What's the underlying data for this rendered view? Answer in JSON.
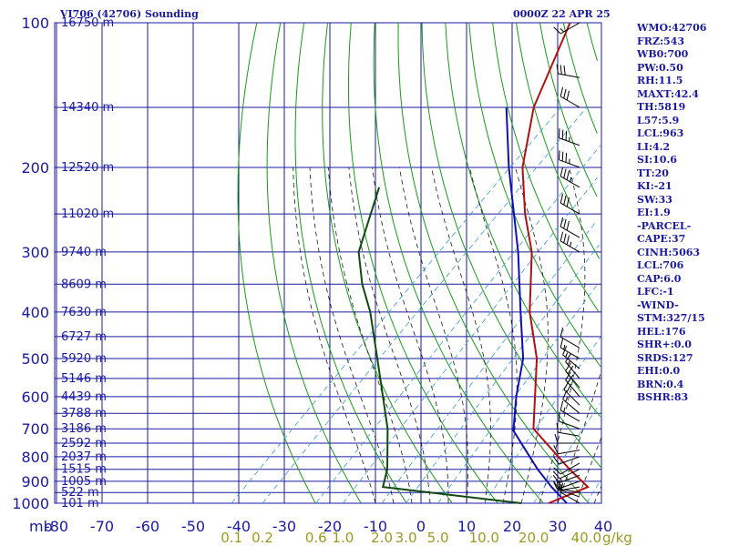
{
  "header": {
    "station": "VI706 (42706) Sounding",
    "time": "0000Z 22 APR 25"
  },
  "indices": [
    "WMO:42706",
    "FRZ:543",
    "WB0:700",
    "PW:0.50",
    "RH:11.5",
    "MAXT:42.4",
    "TH:5819",
    "L57:5.9",
    "LCL:963",
    "LI:4.2",
    "SI:10.6",
    "TT:20",
    "KI:-21",
    "SW:33",
    "EI:1.9",
    "-PARCEL-",
    "CAPE:37",
    "CINH:5063",
    "LCL:706",
    "CAP:6.0",
    "LFC:-1",
    "-WIND-",
    "STM:327/15",
    "HEL:176",
    "SHR+:0.0",
    "SRDS:127",
    "EHI:0.0",
    "BRN:0.4",
    "BSHR:83"
  ],
  "colors": {
    "text": "#1a1aa0",
    "isobar": "#1a1aa0",
    "isotherm": "#1a1aa0",
    "dry_adiabat": "#1a9a1a",
    "moist_adiabat": "#1a1a1a",
    "mixing_ratio": "#3a9ad8",
    "mixing_label": "#9a9a22",
    "temperature": "#b01010",
    "dewpoint": "#104a10",
    "parcel": "#1010b0",
    "wind": "#000000"
  },
  "chart_data": {
    "type": "skew-t",
    "pressure_unit": "mb",
    "pressure_range": [
      100,
      1000
    ],
    "temperature_range": [
      -80,
      40
    ],
    "pressure_levels": [
      {
        "p": 100,
        "label": "100",
        "height": "16750 m"
      },
      {
        "p": 150,
        "label": "",
        "height": "14340 m"
      },
      {
        "p": 200,
        "label": "200",
        "height": "12520 m"
      },
      {
        "p": 250,
        "label": "",
        "height": "11020 m"
      },
      {
        "p": 300,
        "label": "300",
        "height": "9740 m"
      },
      {
        "p": 350,
        "label": "",
        "height": "8609 m"
      },
      {
        "p": 400,
        "label": "400",
        "height": "7630 m"
      },
      {
        "p": 450,
        "label": "",
        "height": "6727 m"
      },
      {
        "p": 500,
        "label": "500",
        "height": "5920 m"
      },
      {
        "p": 550,
        "label": "",
        "height": "5146 m"
      },
      {
        "p": 600,
        "label": "600",
        "height": "4439 m"
      },
      {
        "p": 650,
        "label": "",
        "height": "3788 m"
      },
      {
        "p": 700,
        "label": "700",
        "height": "3186 m"
      },
      {
        "p": 750,
        "label": "",
        "height": "2592 m"
      },
      {
        "p": 800,
        "label": "800",
        "height": "2037 m"
      },
      {
        "p": 850,
        "label": "",
        "height": "1515 m"
      },
      {
        "p": 900,
        "label": "900",
        "height": "1005 m"
      },
      {
        "p": 950,
        "label": "",
        "height": "522 m"
      },
      {
        "p": 1000,
        "label": "1000",
        "height": "101 m"
      }
    ],
    "temperature_ticks": [
      {
        "t": -80,
        "label": "-80"
      },
      {
        "t": -70,
        "label": "-70"
      },
      {
        "t": -60,
        "label": "-60"
      },
      {
        "t": -50,
        "label": "-50"
      },
      {
        "t": -40,
        "label": "-40"
      },
      {
        "t": -30,
        "label": "-30"
      },
      {
        "t": -20,
        "label": "-20"
      },
      {
        "t": -10,
        "label": "-10"
      },
      {
        "t": 0,
        "label": "0"
      },
      {
        "t": 10,
        "label": "10"
      },
      {
        "t": 20,
        "label": "20"
      },
      {
        "t": 30,
        "label": "30"
      },
      {
        "t": 40,
        "label": "40"
      }
    ],
    "mixing_ratios": [
      {
        "w": 0.1,
        "label": "0.1"
      },
      {
        "w": 0.2,
        "label": "0.2"
      },
      {
        "w": 0.6,
        "label": "0.6"
      },
      {
        "w": 1.0,
        "label": "1.0"
      },
      {
        "w": 2.0,
        "label": "2.0"
      },
      {
        "w": 3.0,
        "label": "3.0"
      },
      {
        "w": 5.0,
        "label": "5.0"
      },
      {
        "w": 10.0,
        "label": "10.0"
      },
      {
        "w": 20.0,
        "label": "20.0"
      },
      {
        "w": 40.0,
        "label": "40.0"
      }
    ],
    "mixing_units": "g/kg",
    "temperature_profile": [
      {
        "p": 1000,
        "t": 28
      },
      {
        "p": 925,
        "t": 33
      },
      {
        "p": 850,
        "t": 25
      },
      {
        "p": 700,
        "t": 8
      },
      {
        "p": 500,
        "t": -7
      },
      {
        "p": 400,
        "t": -19
      },
      {
        "p": 300,
        "t": -32
      },
      {
        "p": 250,
        "t": -42
      },
      {
        "p": 200,
        "t": -53
      },
      {
        "p": 150,
        "t": -64
      },
      {
        "p": 100,
        "t": -75
      }
    ],
    "dewpoint_profile": [
      {
        "p": 1000,
        "t": 22
      },
      {
        "p": 925,
        "t": -12
      },
      {
        "p": 850,
        "t": -15
      },
      {
        "p": 700,
        "t": -24
      },
      {
        "p": 500,
        "t": -42
      },
      {
        "p": 400,
        "t": -54
      },
      {
        "p": 350,
        "t": -62
      },
      {
        "p": 300,
        "t": -70
      },
      {
        "p": 220,
        "t": -80
      }
    ],
    "parcel_path": [
      {
        "p": 1000,
        "t": 32
      },
      {
        "p": 925,
        "t": 25
      },
      {
        "p": 850,
        "t": 18
      },
      {
        "p": 706,
        "t": 4
      },
      {
        "p": 600,
        "t": -3
      },
      {
        "p": 500,
        "t": -10
      },
      {
        "p": 400,
        "t": -21
      },
      {
        "p": 300,
        "t": -35
      },
      {
        "p": 200,
        "t": -56
      },
      {
        "p": 150,
        "t": -70
      }
    ],
    "wind_barbs": [
      {
        "p": 1000,
        "dir": 300,
        "spd": 10
      },
      {
        "p": 970,
        "dir": 290,
        "spd": 10
      },
      {
        "p": 950,
        "dir": 280,
        "spd": 15
      },
      {
        "p": 925,
        "dir": 260,
        "spd": 15
      },
      {
        "p": 900,
        "dir": 250,
        "spd": 15
      },
      {
        "p": 875,
        "dir": 250,
        "spd": 15
      },
      {
        "p": 850,
        "dir": 245,
        "spd": 10
      },
      {
        "p": 825,
        "dir": 240,
        "spd": 10
      },
      {
        "p": 800,
        "dir": 250,
        "spd": 10
      },
      {
        "p": 775,
        "dir": 260,
        "spd": 10
      },
      {
        "p": 750,
        "dir": 270,
        "spd": 10
      },
      {
        "p": 725,
        "dir": 280,
        "spd": 10
      },
      {
        "p": 700,
        "dir": 290,
        "spd": 10
      },
      {
        "p": 675,
        "dir": 300,
        "spd": 15
      },
      {
        "p": 650,
        "dir": 310,
        "spd": 15
      },
      {
        "p": 625,
        "dir": 315,
        "spd": 20
      },
      {
        "p": 600,
        "dir": 320,
        "spd": 20
      },
      {
        "p": 575,
        "dir": 320,
        "spd": 20
      },
      {
        "p": 550,
        "dir": 320,
        "spd": 15
      },
      {
        "p": 525,
        "dir": 310,
        "spd": 15
      },
      {
        "p": 500,
        "dir": 300,
        "spd": 15
      },
      {
        "p": 475,
        "dir": 300,
        "spd": 10
      },
      {
        "p": 300,
        "dir": 300,
        "spd": 35
      },
      {
        "p": 280,
        "dir": 300,
        "spd": 30
      },
      {
        "p": 250,
        "dir": 300,
        "spd": 30
      },
      {
        "p": 220,
        "dir": 300,
        "spd": 35
      },
      {
        "p": 200,
        "dir": 290,
        "spd": 35
      },
      {
        "p": 180,
        "dir": 290,
        "spd": 35
      },
      {
        "p": 150,
        "dir": 300,
        "spd": 30
      },
      {
        "p": 130,
        "dir": 280,
        "spd": 30
      },
      {
        "p": 100,
        "dir": 240,
        "spd": 15
      }
    ]
  }
}
